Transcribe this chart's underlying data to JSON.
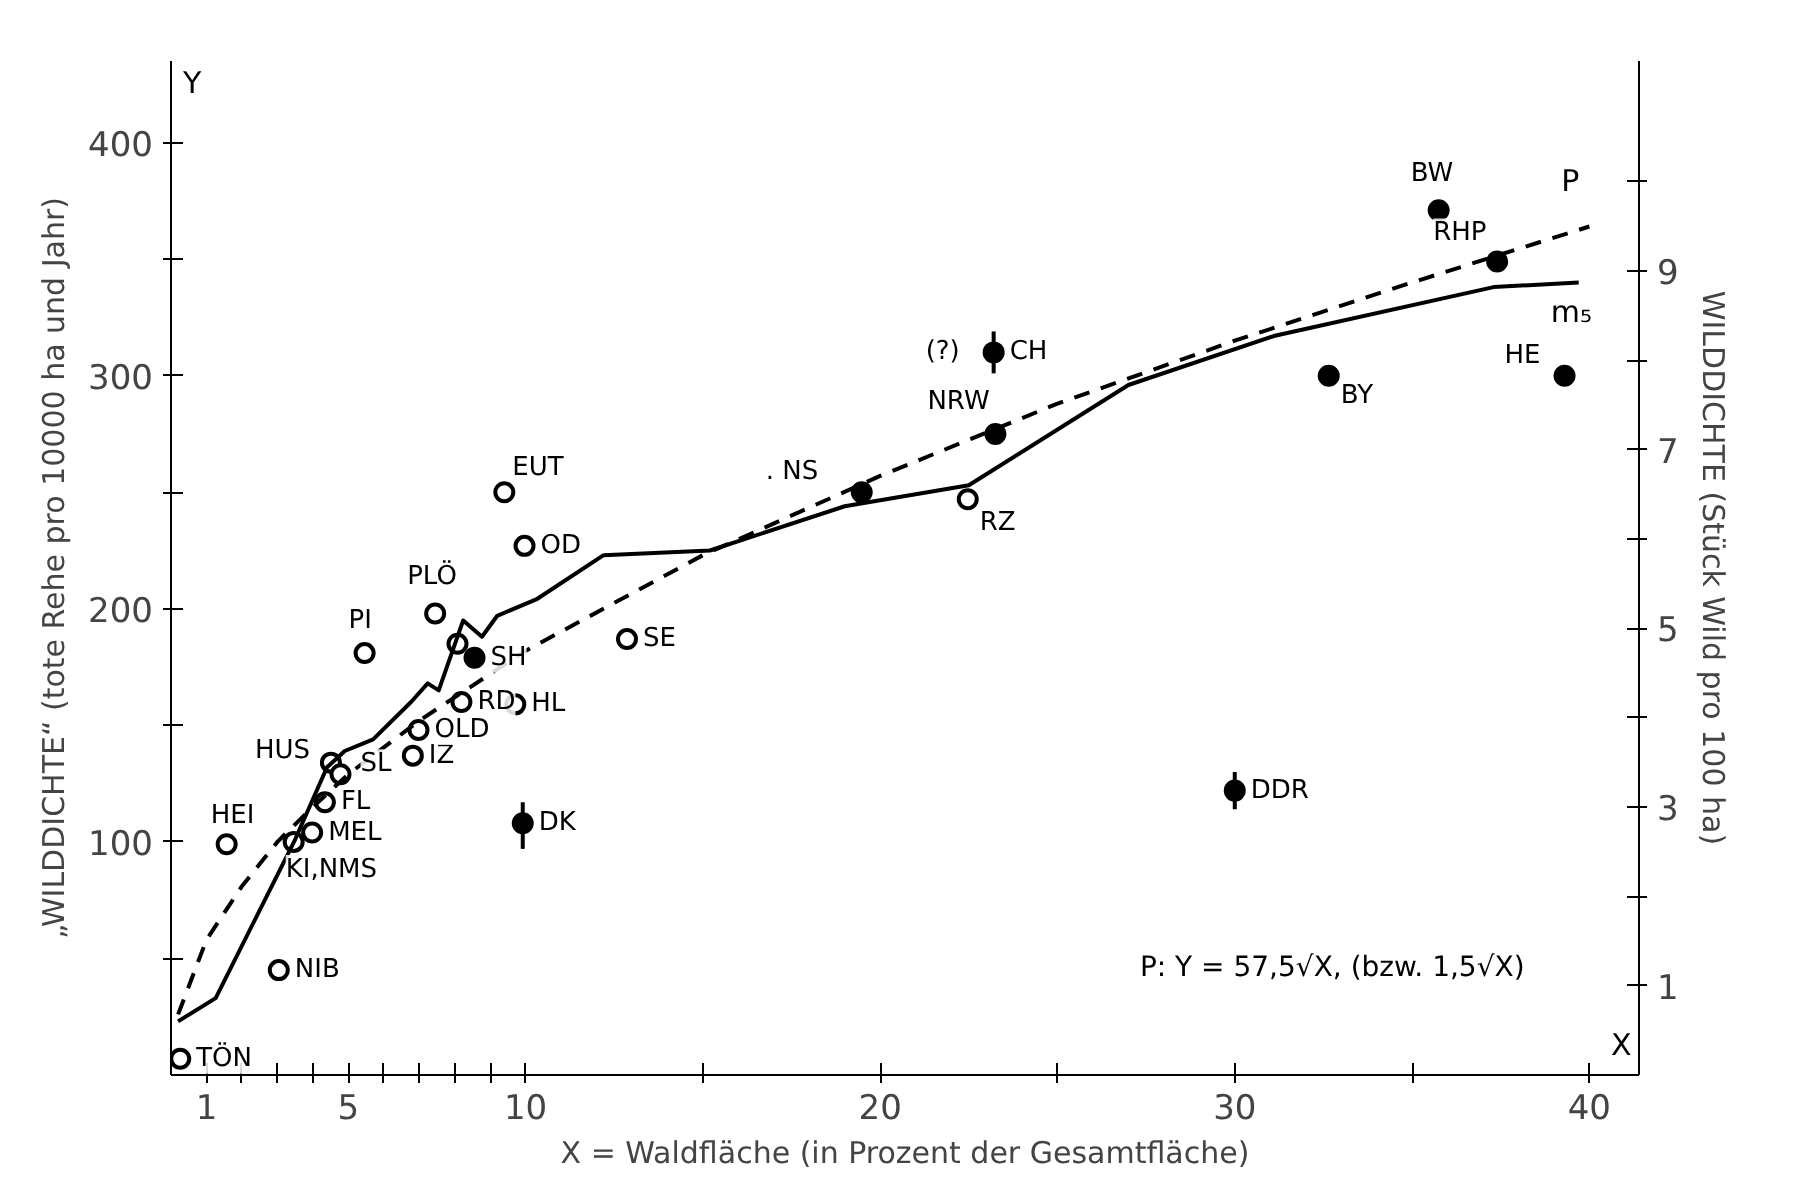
{
  "chart_data": {
    "type": "scatter",
    "xlabel": "X = Waldfläche (in Prozent der Gesamtfläche)",
    "ylabel": "„WILDDICHTE“ (tote Rehe pro 10000 ha und Jahr)",
    "y2label": "WILDDICHTE (Stück Wild pro 100 ha)",
    "xlim": [
      0,
      41.4
    ],
    "ylim": [
      0,
      435
    ],
    "y2lim": [
      0,
      11.35
    ],
    "xticks": [
      1,
      {
        "value": 2,
        "label": null
      },
      {
        "value": 3,
        "label": null
      },
      {
        "value": 4,
        "label": null
      },
      5,
      {
        "value": 6,
        "label": null
      },
      {
        "value": 7,
        "label": null
      },
      {
        "value": 8,
        "label": null
      },
      {
        "value": 9,
        "label": null
      },
      10,
      {
        "value": 15,
        "label": null
      },
      20,
      {
        "value": 25,
        "label": null
      },
      30,
      {
        "value": 35,
        "label": null
      },
      40
    ],
    "yticks": [
      {
        "value": 50,
        "label": null
      },
      100,
      {
        "value": 150,
        "label": null
      },
      200,
      {
        "value": 250,
        "label": null
      },
      300,
      {
        "value": 350,
        "label": null
      },
      400
    ],
    "y2ticks": [
      1,
      {
        "value": 2,
        "label": null
      },
      3,
      {
        "value": 4,
        "label": null
      },
      5,
      {
        "value": 6,
        "label": null
      },
      7,
      {
        "value": 8,
        "label": null
      },
      9,
      {
        "value": 10,
        "label": null
      }
    ],
    "marker": "circle",
    "grid": false,
    "series": [
      {
        "color": "#ffffff",
        "x": [
          0.26,
          1.57,
          3.04,
          3.46,
          3.98,
          4.34,
          4.51,
          4.78,
          6.82,
          6.98,
          8.19,
          9.71,
          5.46,
          7.45,
          8.08,
          12.86,
          9.4,
          9.97,
          22.47
        ],
        "values": [
          7,
          99,
          45,
          100,
          104,
          117,
          134,
          129,
          137,
          148,
          160,
          159,
          181,
          198,
          185,
          187,
          250,
          227,
          247
        ]
      },
      {
        "color": "#000000",
        "x": [
          8.56,
          9.92,
          19.48,
          23.25,
          23.2,
          32.65,
          35.75,
          37.4,
          39.3,
          30.0
        ],
        "values": [
          179,
          108,
          250,
          275,
          310,
          300,
          371,
          349,
          300,
          122
        ],
        "errors": [
          null,
          [
            97,
            117
          ],
          null,
          null,
          [
            301,
            319
          ],
          null,
          null,
          null,
          null,
          [
            114,
            130
          ]
        ]
      },
      {
        "type": "line",
        "name": "m₅",
        "color": "#000000",
        "line_style": "solid",
        "marker": "none",
        "x": [
          0.2,
          1.26,
          3.5,
          4.4,
          4.9,
          5.7,
          6.77,
          7.24,
          7.55,
          8.24,
          8.77,
          9.2,
          10.3,
          12.2,
          15.2,
          19.0,
          22.5,
          27.0,
          31.1,
          37.3,
          39.7
        ],
        "values": [
          23,
          33,
          101,
          132,
          139,
          144,
          160,
          168,
          165,
          195,
          188,
          197,
          204,
          223,
          225,
          244,
          253,
          296,
          317,
          338,
          340
        ]
      },
      {
        "type": "line",
        "name": "P",
        "color": "#000000",
        "line_style": "dashed",
        "marker": "none",
        "x": [
          0.2,
          1,
          2,
          3,
          4,
          5,
          7,
          10,
          15,
          20,
          25,
          30,
          35,
          40
        ],
        "values": [
          26,
          58,
          81,
          100,
          115,
          129,
          152,
          182,
          223,
          257,
          288,
          315,
          340,
          364
        ]
      }
    ],
    "annotations": [
      "P:   Y = 57,5√X, (bzw. 1,5√X)",
      "Y",
      "X",
      {
        "text": "TÖN",
        "x": 0.26,
        "y": 7
      },
      {
        "text": "HEI",
        "x": 1.57,
        "y": 99
      },
      {
        "text": "NIB",
        "x": 3.04,
        "y": 45
      },
      {
        "text": "KI,NMS",
        "x": 3.46,
        "y": 100
      },
      {
        "text": "MEL",
        "x": 3.98,
        "y": 104
      },
      {
        "text": "FL",
        "x": 4.34,
        "y": 117
      },
      {
        "text": "HUS",
        "x": 4.51,
        "y": 134
      },
      {
        "text": "SL",
        "x": 4.78,
        "y": 129
      },
      {
        "text": "IZ",
        "x": 6.82,
        "y": 137
      },
      {
        "text": "OLD",
        "x": 6.98,
        "y": 148
      },
      {
        "text": "RD",
        "x": 8.19,
        "y": 160
      },
      {
        "text": "HL",
        "x": 9.71,
        "y": 159
      },
      {
        "text": "PI",
        "x": 5.46,
        "y": 181
      },
      {
        "text": "PLÖ",
        "x": 7.45,
        "y": 198
      },
      {
        "text": "SH",
        "x": 8.56,
        "y": 179
      },
      {
        "text": "DK",
        "x": 9.92,
        "y": 108
      },
      {
        "text": "SE",
        "x": 12.86,
        "y": 187
      },
      {
        "text": "EUT",
        "x": 9.4,
        "y": 250
      },
      {
        "text": "OD",
        "x": 9.97,
        "y": 227
      },
      {
        "text": ". NS",
        "x": 19.48,
        "y": 250
      },
      {
        "text": "NRW",
        "x": 23.25,
        "y": 275
      },
      {
        "text": "(?)",
        "x": 23.2,
        "y": 310
      },
      {
        "text": "CH",
        "x": 23.2,
        "y": 310
      },
      {
        "text": "RZ",
        "x": 22.47,
        "y": 247
      },
      {
        "text": "BY",
        "x": 32.65,
        "y": 300
      },
      {
        "text": "BW",
        "x": 35.75,
        "y": 371
      },
      {
        "text": "RHP",
        "x": 37.4,
        "y": 349
      },
      {
        "text": "HE",
        "x": 39.3,
        "y": 300
      },
      {
        "text": "DDR",
        "x": 30.0,
        "y": 122
      }
    ]
  }
}
